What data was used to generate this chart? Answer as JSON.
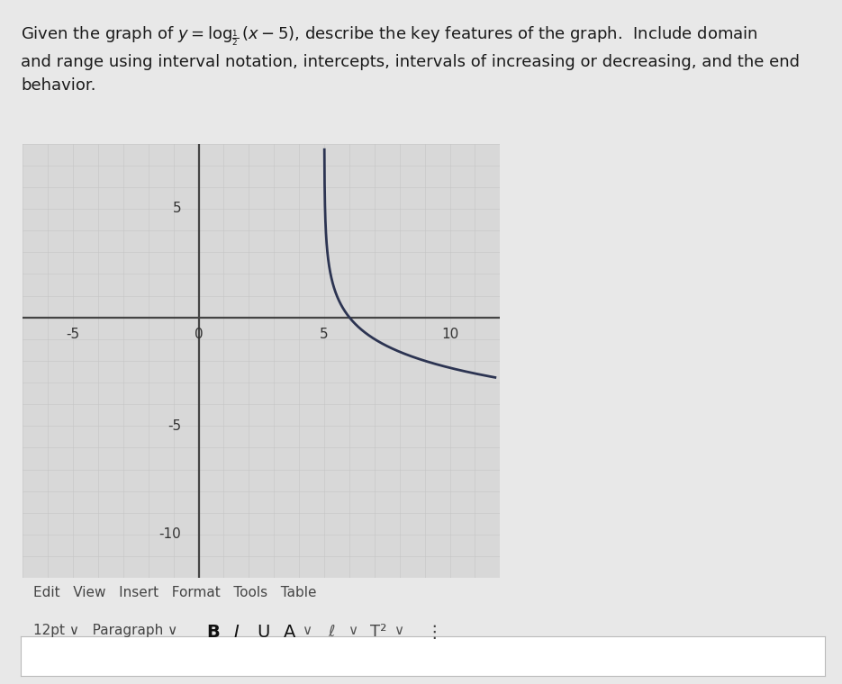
{
  "xmin": -7,
  "xmax": 12,
  "ymin": -12,
  "ymax": 8,
  "xtick_labels": [
    [
      -5,
      "-5"
    ],
    [
      0,
      "0"
    ],
    [
      5,
      "5"
    ],
    [
      10,
      "10"
    ]
  ],
  "ytick_labels": [
    [
      -10,
      "-10"
    ],
    [
      -5,
      "-5"
    ],
    [
      5,
      "5"
    ]
  ],
  "grid_minor_color": "#c5c5c5",
  "grid_major_color": "#b0b0b0",
  "axis_color": "#444444",
  "curve_color": "#2c3452",
  "page_bg": "#e8e8e8",
  "plot_bg": "#d8d8d8",
  "curve_xstart": 5.002,
  "curve_xend": 11.8,
  "base": 0.5,
  "shift": 5,
  "header_text_line1": "Given the graph of $y = \\log_{\\frac{1}{2}}(x-5)$, describe the key features of the graph.  Include domain",
  "header_text_line2": "and range using interval notation, intercepts, intervals of increasing or decreasing, and the end",
  "header_text_line3": "behavior.",
  "toolbar1": "Edit   View   Insert   Format   Tools   Table",
  "font_size_header": 13,
  "font_size_toolbar": 11
}
